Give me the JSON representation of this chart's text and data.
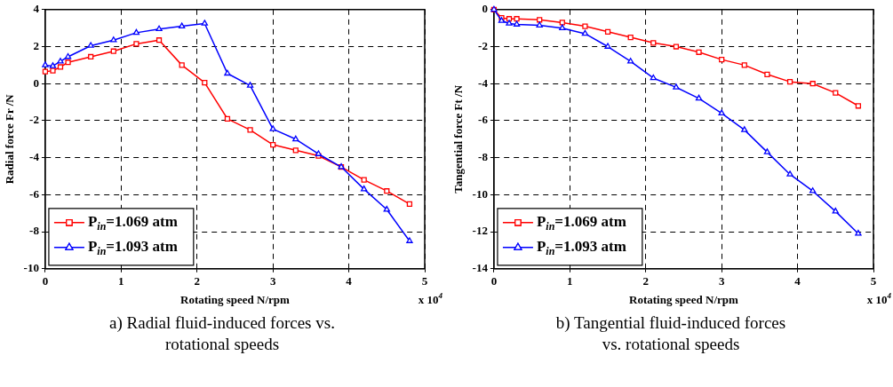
{
  "chart_data": [
    {
      "type": "line",
      "title": "a) Radial fluid-induced forces vs. rotational speeds",
      "xlabel": "Rotating speed N/rpm",
      "ylabel": "Radial force Fr /N",
      "x": [
        0,
        0.1,
        0.2,
        0.3,
        0.6,
        0.9,
        1.2,
        1.5,
        1.8,
        2.1,
        2.4,
        2.7,
        3.0,
        3.3,
        3.6,
        3.9,
        4.2,
        4.5,
        4.8
      ],
      "series": [
        {
          "name": "P$_{in}$=1.069 atm",
          "color": "#ff0000",
          "marker": "square",
          "values": [
            0.65,
            0.7,
            0.9,
            1.15,
            1.45,
            1.75,
            2.15,
            2.35,
            1.0,
            0.05,
            -1.9,
            -2.5,
            -3.3,
            -3.6,
            -3.9,
            -4.5,
            -5.2,
            -5.8,
            -6.5
          ]
        },
        {
          "name": "P$_{in}$=1.093 atm",
          "color": "#0000ff",
          "marker": "triangle",
          "values": [
            1.0,
            0.95,
            1.2,
            1.45,
            2.05,
            2.35,
            2.75,
            2.95,
            3.1,
            3.25,
            0.55,
            -0.1,
            -2.45,
            -3.0,
            -3.8,
            -4.5,
            -5.7,
            -6.8,
            -8.5
          ]
        }
      ],
      "xlim": [
        0,
        5
      ],
      "xticks": [
        0,
        1,
        2,
        3,
        4,
        5
      ],
      "ylim": [
        -10,
        4
      ],
      "yticks": [
        -10,
        -8,
        -6,
        -4,
        -2,
        0,
        2,
        4
      ],
      "grid": true,
      "legend": "bottom left",
      "line_style": "solid",
      "annotations": [
        "x 10$^{4}$"
      ]
    },
    {
      "type": "line",
      "title": "b) Tangential fluid-induced forces vs. rotational speeds",
      "xlabel": "Rotating speed N/rpm",
      "ylabel": "Tangential force Ft /N",
      "x": [
        0,
        0.1,
        0.2,
        0.3,
        0.6,
        0.9,
        1.2,
        1.5,
        1.8,
        2.1,
        2.4,
        2.7,
        3.0,
        3.3,
        3.6,
        3.9,
        4.2,
        4.5,
        4.8
      ],
      "series": [
        {
          "name": "P$_{in}$=1.069 atm",
          "color": "#ff0000",
          "marker": "square",
          "values": [
            0,
            -0.45,
            -0.5,
            -0.5,
            -0.55,
            -0.7,
            -0.9,
            -1.2,
            -1.5,
            -1.8,
            -2.0,
            -2.3,
            -2.7,
            -3.0,
            -3.5,
            -3.9,
            -4.0,
            -4.5,
            -5.2
          ]
        },
        {
          "name": "P$_{in}$=1.093 atm",
          "color": "#0000ff",
          "marker": "triangle",
          "values": [
            0,
            -0.6,
            -0.75,
            -0.8,
            -0.85,
            -1.0,
            -1.3,
            -2.0,
            -2.8,
            -3.7,
            -4.2,
            -4.8,
            -5.6,
            -6.5,
            -7.7,
            -8.9,
            -9.8,
            -10.9,
            -12.1
          ]
        }
      ],
      "xlim": [
        0,
        5
      ],
      "xticks": [
        0,
        1,
        2,
        3,
        4,
        5
      ],
      "ylim": [
        -14,
        0
      ],
      "yticks": [
        -14,
        -12,
        -10,
        -8,
        -6,
        -4,
        -2,
        0
      ],
      "grid": true,
      "legend": "bottom left",
      "line_style": "solid",
      "annotations": [
        "x 10$^{4}$"
      ]
    }
  ]
}
